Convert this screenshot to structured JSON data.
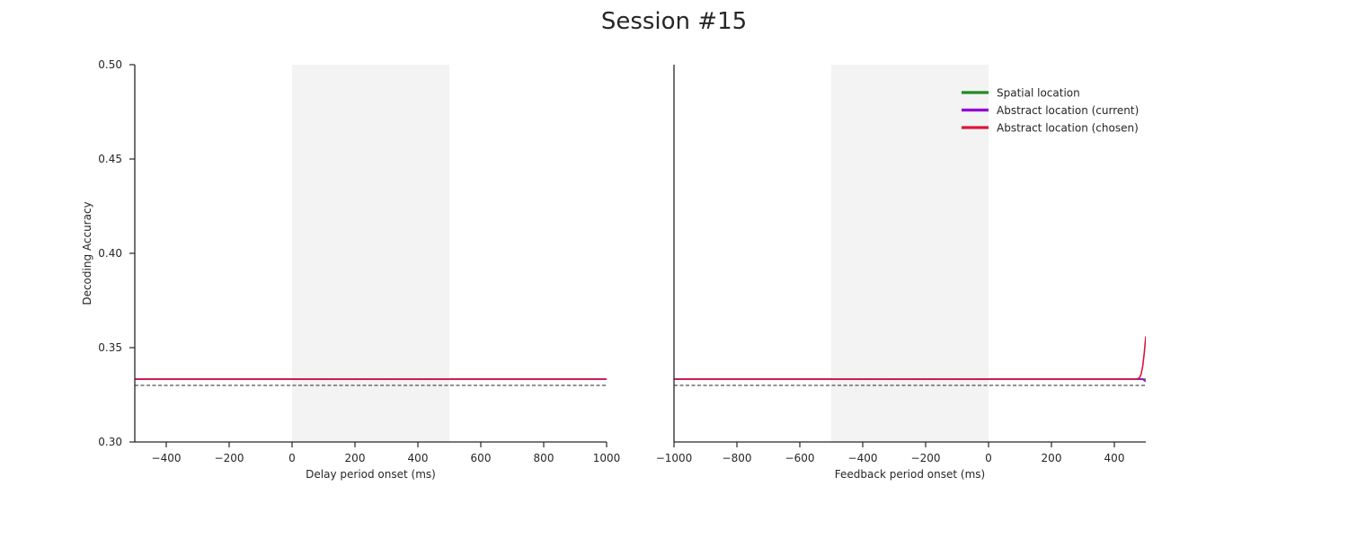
{
  "title": "Session #15",
  "chart_data": [
    {
      "type": "line",
      "xlabel": "Delay period onset (ms)",
      "ylabel": "Decoding Accuracy",
      "xlim": [
        -500,
        1000
      ],
      "ylim": [
        0.3,
        0.5
      ],
      "xticks": [
        -400,
        -200,
        0,
        200,
        400,
        600,
        800,
        1000
      ],
      "xtick_labels": [
        "−400",
        "−200",
        "0",
        "200",
        "400",
        "600",
        "800",
        "1000"
      ],
      "yticks": [
        0.3,
        0.35,
        0.4,
        0.45,
        0.5
      ],
      "ytick_labels": [
        "0.30",
        "0.35",
        "0.40",
        "0.45",
        "0.50"
      ],
      "shaded_region": [
        0,
        500
      ],
      "chance_level": 0.33,
      "series": [
        {
          "name": "Spatial location",
          "color": "#228B22",
          "x": [
            -500,
            1000
          ],
          "values": [
            0.3333,
            0.3333
          ]
        },
        {
          "name": "Abstract location (current)",
          "color": "#9400D3",
          "x": [
            -500,
            1000
          ],
          "values": [
            0.3333,
            0.3333
          ]
        },
        {
          "name": "Abstract location (chosen)",
          "color": "#DC143C",
          "x": [
            -500,
            1000
          ],
          "values": [
            0.3333,
            0.3333
          ]
        }
      ]
    },
    {
      "type": "line",
      "xlabel": "Feedback period onset (ms)",
      "ylabel": "",
      "xlim": [
        -1000,
        500
      ],
      "ylim": [
        0.3,
        0.5
      ],
      "xticks": [
        -1000,
        -800,
        -600,
        -400,
        -200,
        0,
        200,
        400
      ],
      "xtick_labels": [
        "−1000",
        "−800",
        "−600",
        "−400",
        "−200",
        "0",
        "200",
        "400"
      ],
      "shaded_region": [
        -500,
        0
      ],
      "chance_level": 0.33,
      "legend_position": "top-right",
      "series": [
        {
          "name": "Spatial location",
          "color": "#228B22",
          "x": [
            -1000,
            500
          ],
          "values": [
            0.3333,
            0.3333
          ]
        },
        {
          "name": "Abstract location (current)",
          "color": "#9400D3",
          "x": [
            -1000,
            480,
            490,
            500
          ],
          "values": [
            0.3333,
            0.3333,
            0.3333,
            0.332
          ]
        },
        {
          "name": "Abstract location (chosen)",
          "color": "#DC143C",
          "x": [
            -1000,
            470,
            480,
            485,
            490,
            495,
            500
          ],
          "values": [
            0.3333,
            0.3333,
            0.334,
            0.336,
            0.34,
            0.347,
            0.356
          ]
        }
      ]
    }
  ]
}
